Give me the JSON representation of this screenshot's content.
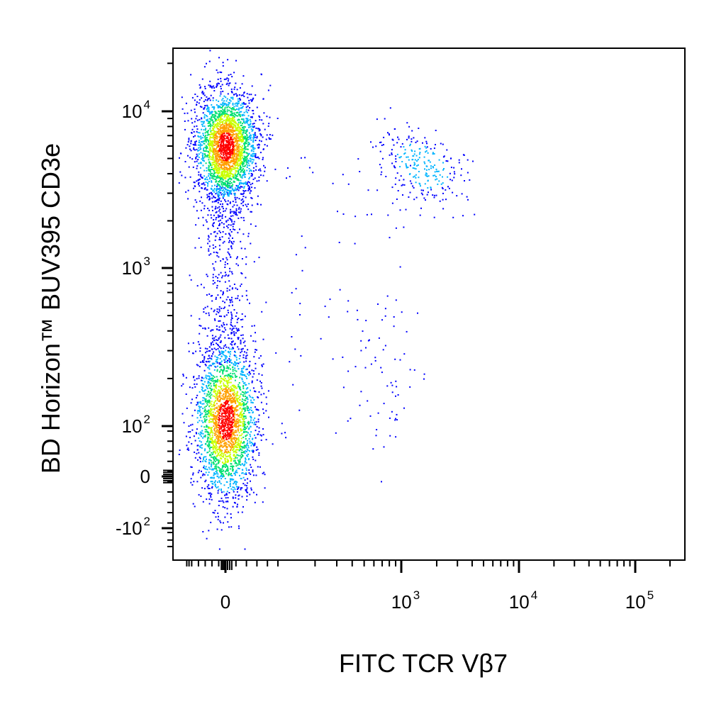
{
  "chart_data": {
    "type": "scatter",
    "subtype": "flow-cytometry-density-dot-plot",
    "title": "",
    "xlabel": "FITC TCR Vβ7",
    "ylabel": "BD Horizon™ BUV395 CD3e",
    "x_scale": "biexponential",
    "y_scale": "biexponential",
    "xlim": [
      -150,
      200000
    ],
    "ylim": [
      -160,
      22000
    ],
    "x_ticks": [
      {
        "value": 0,
        "base": "0",
        "exp": ""
      },
      {
        "value": 1000,
        "base": "10",
        "exp": "3"
      },
      {
        "value": 10000,
        "base": "10",
        "exp": "4"
      },
      {
        "value": 100000,
        "base": "10",
        "exp": "5"
      }
    ],
    "y_ticks": [
      {
        "value": -100,
        "base": "-10",
        "exp": "2"
      },
      {
        "value": 0,
        "base": "0",
        "exp": ""
      },
      {
        "value": 100,
        "base": "10",
        "exp": "2"
      },
      {
        "value": 1000,
        "base": "10",
        "exp": "3"
      },
      {
        "value": 10000,
        "base": "10",
        "exp": "4"
      }
    ],
    "grid": false,
    "legend": "none",
    "color_scale": [
      "#0000ff",
      "#00b4ff",
      "#00e070",
      "#c8ff00",
      "#ffa000",
      "#ff0000"
    ],
    "populations": [
      {
        "x_center": 0,
        "y_center": 6000,
        "density": "high"
      },
      {
        "x_center": 0,
        "y_center": 110,
        "density": "high"
      },
      {
        "x_center": 1500,
        "y_center": 4500,
        "density": "low"
      },
      {
        "x_center": 700,
        "y_center": 200,
        "density": "very-low"
      }
    ]
  }
}
